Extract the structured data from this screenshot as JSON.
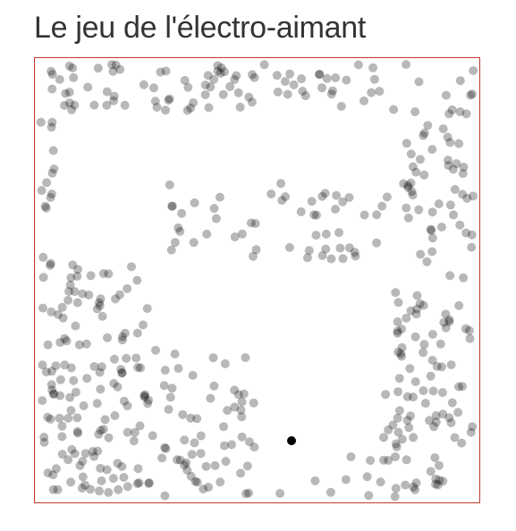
{
  "game": {
    "title": "Le jeu de l'électro-aimant"
  },
  "colors": {
    "border": "#c0392b",
    "particle": "#000000",
    "magnet": "#000000",
    "title": "#333333"
  },
  "board": {
    "particle_opacity": 0.28
  }
}
